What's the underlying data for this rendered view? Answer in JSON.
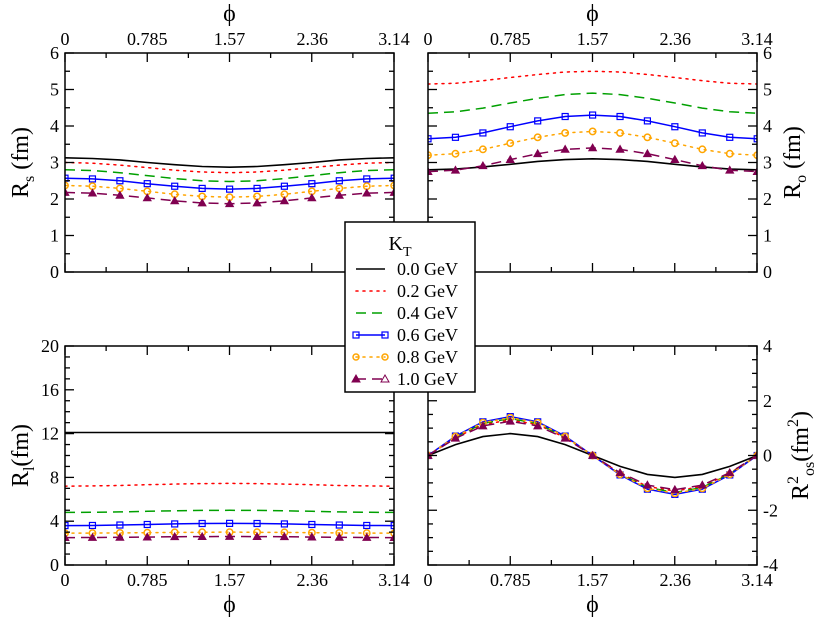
{
  "chart_data": [
    {
      "type": "line",
      "panel": "top-left",
      "xlabel": "ϕ",
      "ylabel": {
        "main": "R",
        "sub": "s",
        "sup": "",
        "unit": " (fm)"
      },
      "xlim": [
        0,
        3.14
      ],
      "ylim": [
        0,
        6
      ],
      "x_ticks": [
        "0",
        "0.785",
        "1.57",
        "2.36",
        "3.14"
      ],
      "y_ticks": [
        "0",
        "1",
        "2",
        "3",
        "4",
        "5",
        "6"
      ],
      "x_axis_position": "top",
      "y_axis_position": "left",
      "x": [
        0,
        0.262,
        0.524,
        0.785,
        1.047,
        1.309,
        1.571,
        1.833,
        2.094,
        2.356,
        2.618,
        2.88,
        3.142
      ],
      "series": [
        {
          "name": "0.0 GeV",
          "values": [
            3.13,
            3.11,
            3.07,
            3.0,
            2.94,
            2.89,
            2.87,
            2.89,
            2.94,
            3.0,
            3.07,
            3.11,
            3.13
          ]
        },
        {
          "name": "0.2 GeV",
          "values": [
            3.0,
            2.98,
            2.93,
            2.86,
            2.79,
            2.74,
            2.72,
            2.74,
            2.79,
            2.86,
            2.93,
            2.98,
            3.0
          ]
        },
        {
          "name": "0.4 GeV",
          "values": [
            2.8,
            2.78,
            2.72,
            2.64,
            2.56,
            2.5,
            2.48,
            2.5,
            2.56,
            2.64,
            2.72,
            2.78,
            2.8
          ]
        },
        {
          "name": "0.6 GeV",
          "values": [
            2.57,
            2.55,
            2.5,
            2.42,
            2.35,
            2.29,
            2.27,
            2.29,
            2.35,
            2.42,
            2.5,
            2.55,
            2.57
          ]
        },
        {
          "name": "0.8 GeV",
          "values": [
            2.37,
            2.35,
            2.29,
            2.21,
            2.13,
            2.07,
            2.05,
            2.07,
            2.13,
            2.21,
            2.29,
            2.35,
            2.37
          ]
        },
        {
          "name": "1.0 GeV",
          "values": [
            2.18,
            2.16,
            2.1,
            2.03,
            1.95,
            1.89,
            1.87,
            1.89,
            1.95,
            2.03,
            2.1,
            2.16,
            2.18
          ]
        }
      ]
    },
    {
      "type": "line",
      "panel": "top-right",
      "xlabel": "ϕ",
      "ylabel": {
        "main": "R",
        "sub": "o",
        "sup": "",
        "unit": " (fm)"
      },
      "xlim": [
        0,
        3.14
      ],
      "ylim": [
        0,
        6
      ],
      "x_ticks": [
        "0",
        "0.785",
        "1.57",
        "2.36",
        "3.14"
      ],
      "y_ticks": [
        "0",
        "1",
        "2",
        "3",
        "4",
        "5",
        "6"
      ],
      "x_axis_position": "top",
      "y_axis_position": "right",
      "x": [
        0,
        0.262,
        0.524,
        0.785,
        1.047,
        1.309,
        1.571,
        1.833,
        2.094,
        2.356,
        2.618,
        2.88,
        3.142
      ],
      "series": [
        {
          "name": "0.0 GeV",
          "values": [
            2.8,
            2.82,
            2.88,
            2.95,
            3.03,
            3.08,
            3.1,
            3.08,
            3.03,
            2.95,
            2.88,
            2.82,
            2.8
          ]
        },
        {
          "name": "0.2 GeV",
          "values": [
            5.15,
            5.17,
            5.24,
            5.33,
            5.41,
            5.48,
            5.5,
            5.48,
            5.41,
            5.33,
            5.24,
            5.17,
            5.15
          ]
        },
        {
          "name": "0.4 GeV",
          "values": [
            4.35,
            4.39,
            4.49,
            4.63,
            4.76,
            4.86,
            4.9,
            4.86,
            4.76,
            4.63,
            4.49,
            4.39,
            4.35
          ]
        },
        {
          "name": "0.6 GeV",
          "values": [
            3.65,
            3.69,
            3.81,
            3.98,
            4.14,
            4.26,
            4.3,
            4.26,
            4.14,
            3.98,
            3.81,
            3.69,
            3.65
          ]
        },
        {
          "name": "0.8 GeV",
          "values": [
            3.2,
            3.24,
            3.36,
            3.53,
            3.69,
            3.81,
            3.85,
            3.81,
            3.69,
            3.53,
            3.36,
            3.24,
            3.2
          ]
        },
        {
          "name": "1.0 GeV",
          "values": [
            2.75,
            2.79,
            2.91,
            3.08,
            3.24,
            3.36,
            3.4,
            3.36,
            3.24,
            3.08,
            2.91,
            2.79,
            2.75
          ]
        }
      ]
    },
    {
      "type": "line",
      "panel": "bottom-left",
      "xlabel": "ϕ",
      "ylabel": {
        "main": "R",
        "sub": "l",
        "sup": "",
        "unit": "(fm)"
      },
      "xlim": [
        0,
        3.14
      ],
      "ylim": [
        0,
        20
      ],
      "x_ticks": [
        "0",
        "0.785",
        "1.57",
        "2.36",
        "3.14"
      ],
      "y_ticks": [
        "0",
        "4",
        "8",
        "12",
        "16",
        "20"
      ],
      "x_axis_position": "bottom",
      "y_axis_position": "left",
      "x": [
        0,
        0.262,
        0.524,
        0.785,
        1.047,
        1.309,
        1.571,
        1.833,
        2.094,
        2.356,
        2.618,
        2.88,
        3.142
      ],
      "series": [
        {
          "name": "0.0 GeV",
          "values": [
            12.1,
            12.1,
            12.1,
            12.1,
            12.1,
            12.1,
            12.1,
            12.1,
            12.1,
            12.1,
            12.1,
            12.1,
            12.1
          ]
        },
        {
          "name": "0.2 GeV",
          "values": [
            7.2,
            7.22,
            7.26,
            7.33,
            7.39,
            7.43,
            7.45,
            7.43,
            7.39,
            7.33,
            7.26,
            7.22,
            7.2
          ]
        },
        {
          "name": "0.4 GeV",
          "values": [
            4.8,
            4.81,
            4.85,
            4.9,
            4.95,
            4.99,
            5.0,
            4.99,
            4.95,
            4.9,
            4.85,
            4.81,
            4.8
          ]
        },
        {
          "name": "0.6 GeV",
          "values": [
            3.6,
            3.61,
            3.65,
            3.7,
            3.75,
            3.79,
            3.8,
            3.79,
            3.75,
            3.7,
            3.65,
            3.61,
            3.6
          ]
        },
        {
          "name": "0.8 GeV",
          "values": [
            2.9,
            2.91,
            2.93,
            2.95,
            2.98,
            2.99,
            3.0,
            2.99,
            2.98,
            2.95,
            2.93,
            2.91,
            2.9
          ]
        },
        {
          "name": "1.0 GeV",
          "values": [
            2.5,
            2.51,
            2.53,
            2.55,
            2.58,
            2.59,
            2.6,
            2.59,
            2.58,
            2.55,
            2.53,
            2.51,
            2.5
          ]
        }
      ]
    },
    {
      "type": "line",
      "panel": "bottom-right",
      "xlabel": "ϕ",
      "ylabel": {
        "main": "R",
        "sub": "os",
        "sup": "2",
        "unit": "(fm",
        "unit_sup": "2",
        "unit_close": ")"
      },
      "xlim": [
        0,
        3.14
      ],
      "ylim": [
        -4,
        4
      ],
      "x_ticks": [
        "0",
        "0.785",
        "1.57",
        "2.36",
        "3.14"
      ],
      "y_ticks": [
        "-4",
        "-2",
        "0",
        "2",
        "4"
      ],
      "x_axis_position": "bottom",
      "y_axis_position": "right",
      "x": [
        0,
        0.262,
        0.524,
        0.785,
        1.047,
        1.309,
        1.571,
        1.833,
        2.094,
        2.356,
        2.618,
        2.88,
        3.142
      ],
      "series": [
        {
          "name": "0.0 GeV",
          "values": [
            0,
            0.4,
            0.69,
            0.8,
            0.69,
            0.4,
            0,
            -0.4,
            -0.69,
            -0.8,
            -0.69,
            -0.4,
            0
          ]
        },
        {
          "name": "0.2 GeV",
          "values": [
            0,
            0.65,
            1.13,
            1.3,
            1.13,
            0.65,
            0,
            -0.65,
            -1.13,
            -1.3,
            -1.13,
            -0.65,
            0
          ]
        },
        {
          "name": "0.4 GeV",
          "values": [
            0,
            0.68,
            1.17,
            1.35,
            1.17,
            0.68,
            0,
            -0.68,
            -1.17,
            -1.35,
            -1.17,
            -0.68,
            0
          ]
        },
        {
          "name": "0.6 GeV",
          "values": [
            0,
            0.71,
            1.23,
            1.42,
            1.23,
            0.71,
            0,
            -0.71,
            -1.23,
            -1.42,
            -1.23,
            -0.71,
            0
          ]
        },
        {
          "name": "0.8 GeV",
          "values": [
            0,
            0.69,
            1.2,
            1.38,
            1.2,
            0.69,
            0,
            -0.69,
            -1.2,
            -1.38,
            -1.2,
            -0.69,
            0
          ]
        },
        {
          "name": "1.0 GeV",
          "values": [
            0,
            0.63,
            1.08,
            1.25,
            1.08,
            0.63,
            0,
            -0.63,
            -1.08,
            -1.25,
            -1.08,
            -0.63,
            0
          ]
        }
      ]
    }
  ],
  "legend": {
    "title_main": "K",
    "title_sub": "T",
    "placement": "center",
    "entries": [
      "0.0 GeV",
      "0.2 GeV",
      "0.4 GeV",
      "0.6 GeV",
      "0.8 GeV",
      "1.0 GeV"
    ]
  },
  "series_styles": [
    {
      "color": "#000000",
      "line": "solid",
      "marker": "none"
    },
    {
      "color": "#ff0000",
      "line": "dotted",
      "marker": "none"
    },
    {
      "color": "#00a000",
      "line": "dashed",
      "marker": "none"
    },
    {
      "color": "#0000ff",
      "line": "solid",
      "marker": "open-square"
    },
    {
      "color": "#ffa500",
      "line": "dotted",
      "marker": "open-circle"
    },
    {
      "color": "#800050",
      "line": "dashed",
      "marker": "filled-triangle"
    }
  ]
}
